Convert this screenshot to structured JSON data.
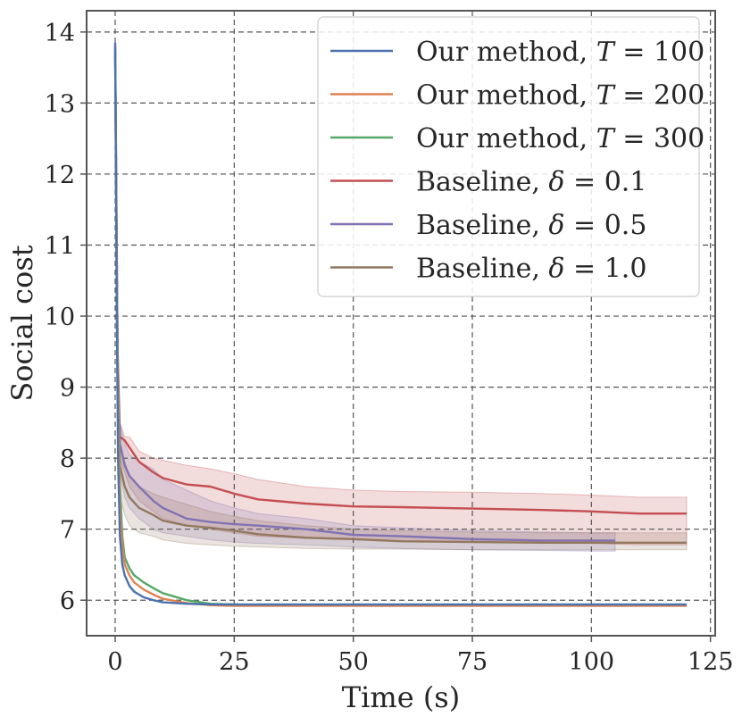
{
  "chart_data": {
    "type": "line",
    "xlabel": "Time (s)",
    "ylabel": "Social cost",
    "xlim": [
      -6,
      126
    ],
    "ylim": [
      5.5,
      14.3
    ],
    "xticks": [
      0,
      25,
      50,
      75,
      100,
      125
    ],
    "yticks": [
      6,
      7,
      8,
      9,
      10,
      11,
      12,
      13,
      14
    ],
    "grid": true,
    "legend_position": "top-right",
    "series": [
      {
        "name": "Our method, T = 100",
        "name_parts": [
          "Our method, ",
          "T",
          " = 100"
        ],
        "color": "#4c72b0",
        "x": [
          0,
          0.3,
          0.6,
          1,
          1.5,
          2,
          3,
          4,
          6,
          8,
          10,
          15,
          20,
          30,
          50,
          80,
          120
        ],
        "y": [
          13.85,
          10.5,
          8.0,
          6.9,
          6.5,
          6.35,
          6.2,
          6.12,
          6.04,
          6.0,
          5.97,
          5.95,
          5.94,
          5.94,
          5.94,
          5.94,
          5.94
        ]
      },
      {
        "name": "Our method, T = 200",
        "name_parts": [
          "Our method, ",
          "T",
          " = 200"
        ],
        "color": "#dd8452",
        "x": [
          0,
          0.3,
          0.6,
          1,
          1.5,
          2,
          3,
          4,
          6,
          8,
          10,
          15,
          20,
          25,
          30,
          50,
          80,
          120
        ],
        "y": [
          13.8,
          10.8,
          8.6,
          7.3,
          6.75,
          6.5,
          6.35,
          6.25,
          6.15,
          6.08,
          6.02,
          5.96,
          5.93,
          5.92,
          5.92,
          5.92,
          5.92,
          5.92
        ]
      },
      {
        "name": "Our method, T = 300",
        "name_parts": [
          "Our method, ",
          "T",
          " = 300"
        ],
        "color": "#55a868",
        "x": [
          0,
          0.3,
          0.6,
          1,
          1.5,
          2,
          3,
          4,
          6,
          8,
          10,
          15,
          20,
          30,
          50,
          80,
          120
        ],
        "y": [
          13.75,
          11.0,
          9.0,
          7.6,
          6.9,
          6.6,
          6.45,
          6.35,
          6.25,
          6.17,
          6.1,
          6.0,
          5.95,
          5.93,
          5.93,
          5.93,
          5.93
        ]
      },
      {
        "name": "Baseline, δ = 0.1",
        "name_parts": [
          "Baseline, ",
          "δ",
          " = 0.1"
        ],
        "color": "#c44e52",
        "band_color": "#c44e52",
        "x": [
          0,
          0.5,
          1,
          2,
          3,
          5,
          8,
          10,
          15,
          20,
          25,
          30,
          40,
          50,
          60,
          75,
          90,
          100,
          110,
          120
        ],
        "y": [
          13.8,
          9.5,
          8.3,
          8.25,
          8.15,
          7.95,
          7.8,
          7.72,
          7.63,
          7.6,
          7.5,
          7.42,
          7.36,
          7.32,
          7.31,
          7.29,
          7.27,
          7.25,
          7.22,
          7.22
        ],
        "lower": [
          13.8,
          9.2,
          8.0,
          7.8,
          7.6,
          7.4,
          7.25,
          7.15,
          7.05,
          7.0,
          6.95,
          6.9,
          6.87,
          6.85,
          6.83,
          6.82,
          6.8,
          6.8,
          6.78,
          6.78
        ],
        "upper": [
          13.8,
          9.8,
          8.5,
          8.3,
          8.3,
          8.1,
          8.0,
          7.97,
          7.9,
          7.85,
          7.78,
          7.7,
          7.6,
          7.55,
          7.53,
          7.52,
          7.5,
          7.48,
          7.45,
          7.45
        ]
      },
      {
        "name": "Baseline, δ = 0.5",
        "name_parts": [
          "Baseline, ",
          "δ",
          " = 0.5"
        ],
        "color": "#8172b3",
        "band_color": "#8172b3",
        "x": [
          0,
          0.5,
          1,
          2,
          3,
          5,
          8,
          10,
          15,
          20,
          25,
          30,
          40,
          50,
          60,
          75,
          90,
          100,
          105
        ],
        "y": [
          13.7,
          9.2,
          8.2,
          7.9,
          7.75,
          7.6,
          7.4,
          7.3,
          7.15,
          7.1,
          7.07,
          7.05,
          7.0,
          6.92,
          6.9,
          6.86,
          6.84,
          6.84,
          6.84
        ],
        "lower": [
          13.7,
          8.9,
          7.8,
          7.45,
          7.3,
          7.15,
          7.0,
          6.95,
          6.9,
          6.85,
          6.82,
          6.8,
          6.78,
          6.75,
          6.73,
          6.71,
          6.7,
          6.69,
          6.69
        ],
        "upper": [
          13.7,
          9.5,
          8.5,
          8.2,
          8.05,
          7.95,
          7.85,
          7.7,
          7.55,
          7.4,
          7.3,
          7.22,
          7.15,
          7.05,
          7.02,
          6.98,
          6.96,
          6.95,
          6.95
        ]
      },
      {
        "name": "Baseline, δ = 1.0",
        "name_parts": [
          "Baseline, ",
          "δ",
          " = 1.0"
        ],
        "color": "#937860",
        "band_color": "#937860",
        "x": [
          0,
          0.5,
          1,
          2,
          3,
          5,
          8,
          10,
          15,
          20,
          25,
          30,
          40,
          50,
          60,
          75,
          90,
          100,
          110,
          120
        ],
        "y": [
          13.7,
          8.9,
          7.9,
          7.6,
          7.45,
          7.3,
          7.2,
          7.12,
          7.05,
          7.02,
          6.98,
          6.93,
          6.88,
          6.86,
          6.83,
          6.82,
          6.81,
          6.81,
          6.81,
          6.81
        ],
        "lower": [
          13.7,
          8.4,
          7.45,
          7.2,
          7.05,
          6.95,
          6.9,
          6.85,
          6.8,
          6.78,
          6.76,
          6.75,
          6.73,
          6.72,
          6.72,
          6.71,
          6.71,
          6.71,
          6.71,
          6.71
        ],
        "upper": [
          13.7,
          9.3,
          8.25,
          7.95,
          7.75,
          7.6,
          7.5,
          7.45,
          7.35,
          7.25,
          7.18,
          7.12,
          7.05,
          7.0,
          6.98,
          6.96,
          6.95,
          6.95,
          6.95,
          6.95
        ]
      }
    ]
  }
}
